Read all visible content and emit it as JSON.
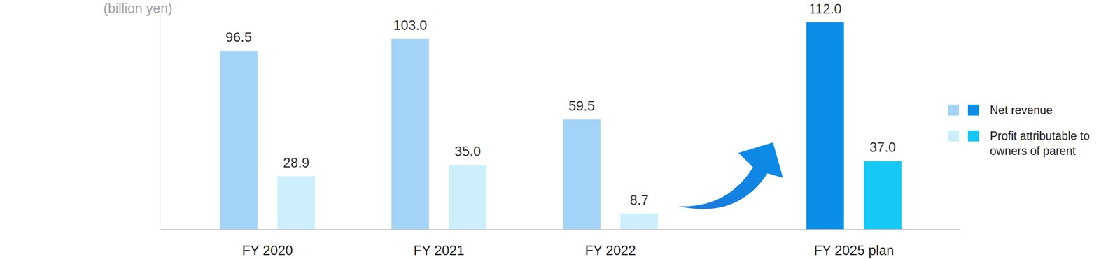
{
  "chart_data": {
    "type": "bar",
    "ylabel": "(billion yen)",
    "categories": [
      "FY 2020",
      "FY 2021",
      "FY 2022",
      "FY 2025 plan"
    ],
    "series": [
      {
        "name": "Net revenue",
        "values": [
          96.5,
          103.0,
          59.5,
          112.0
        ],
        "value_labels": [
          "96.5",
          "103.0",
          "59.5",
          "112.0"
        ],
        "colors": [
          "#a3d4f7",
          "#a3d4f7",
          "#a3d4f7",
          "#0a8ee8"
        ]
      },
      {
        "name": "Profit attributable to owners of parent",
        "values": [
          28.9,
          35.0,
          8.7,
          37.0
        ],
        "value_labels": [
          "28.9",
          "35.0",
          "8.7",
          "37.0"
        ],
        "colors": [
          "#cdeffb",
          "#cdeffb",
          "#cdeffb",
          "#16c8f5"
        ]
      }
    ],
    "ylim": [
      0,
      120
    ],
    "yticks": [],
    "grid": false,
    "data_labels": true,
    "tick_labels": "x",
    "legend": "right"
  }
}
